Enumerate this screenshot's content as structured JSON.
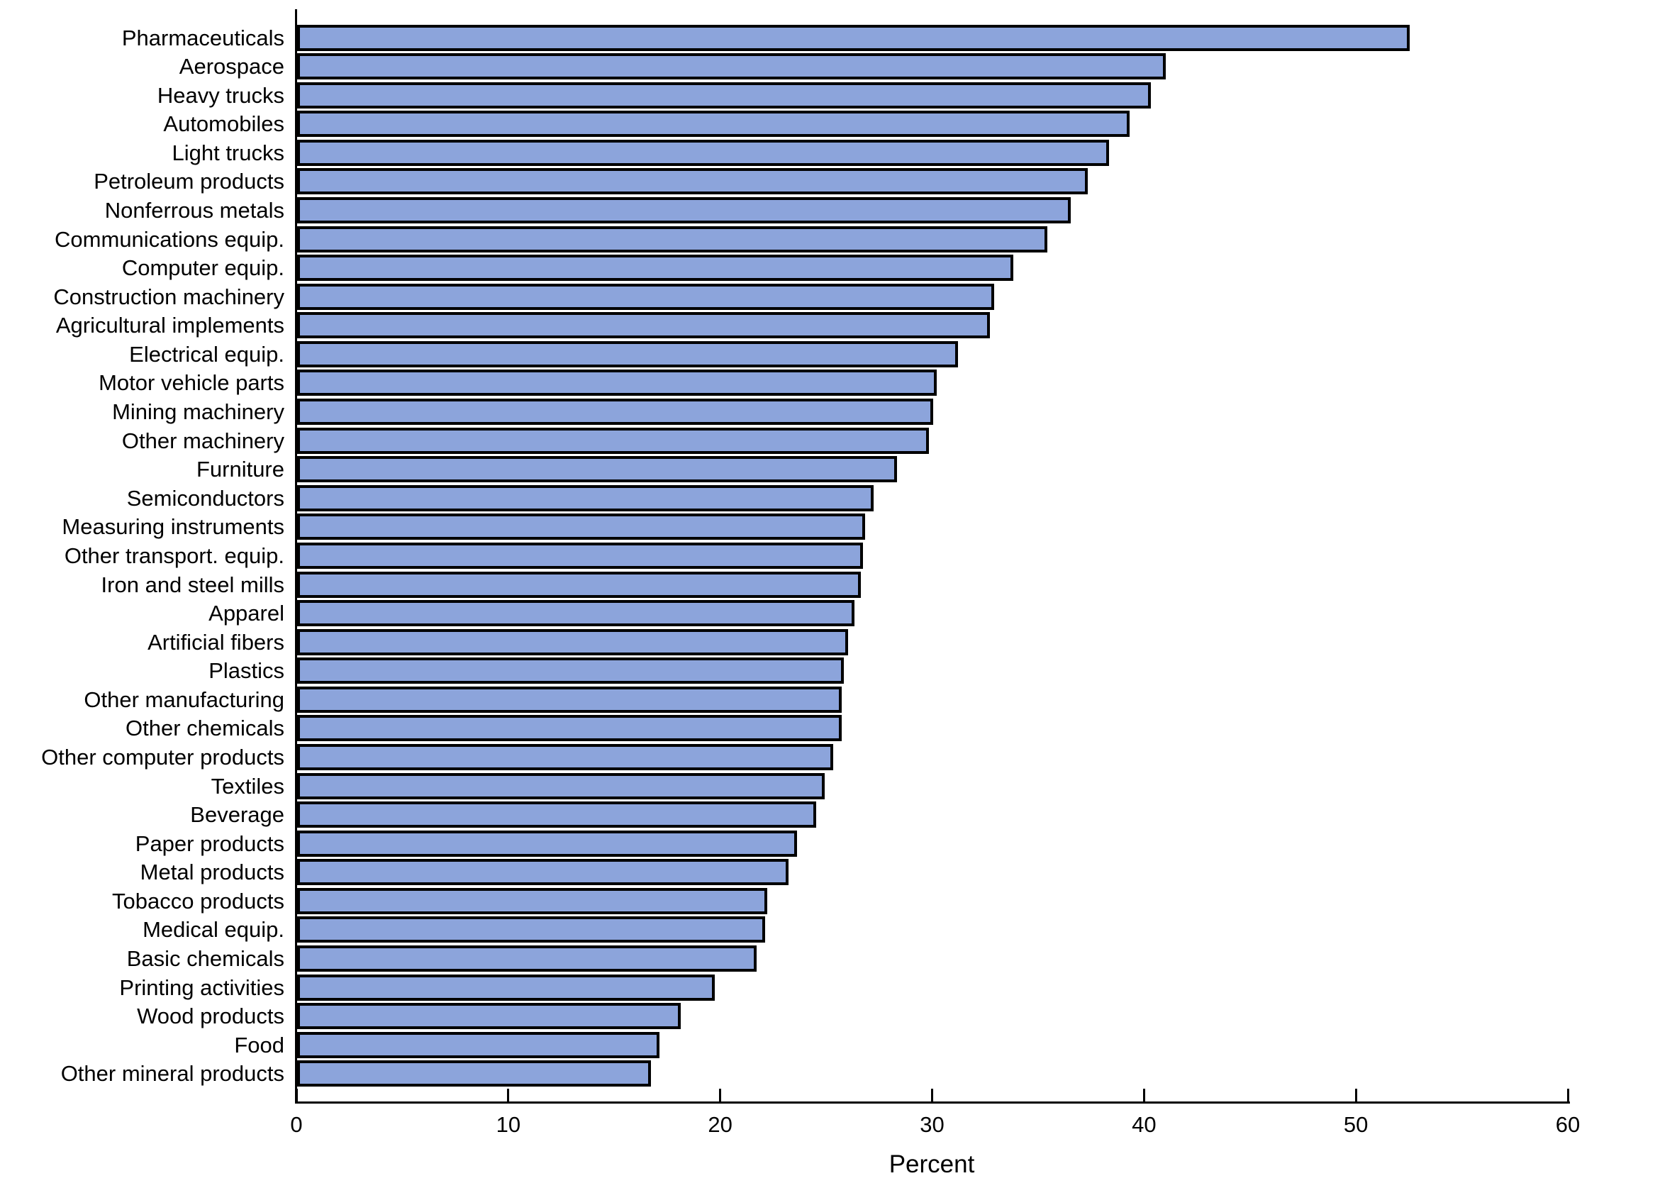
{
  "chart_data": {
    "type": "bar",
    "orientation": "horizontal",
    "title": "",
    "xlabel": "Percent",
    "ylabel": "",
    "xlim": [
      0,
      60
    ],
    "xticks": [
      0,
      10,
      20,
      30,
      40,
      50,
      60
    ],
    "grid": false,
    "legend": null,
    "bar_fill_color": "#8CA4DB",
    "bar_border_color": "#000000",
    "axis_color": "#000000",
    "text_color": "#000000",
    "background_color": "#FFFFFF",
    "categories": [
      "Pharmaceuticals",
      "Aerospace",
      "Heavy trucks",
      "Automobiles",
      "Light trucks",
      "Petroleum products",
      "Nonferrous metals",
      "Communications equip.",
      "Computer equip.",
      "Construction machinery",
      "Agricultural implements",
      "Electrical equip.",
      "Motor vehicle parts",
      "Mining machinery",
      "Other machinery",
      "Furniture",
      "Semiconductors",
      "Measuring instruments",
      "Other transport. equip.",
      "Iron and steel mills",
      "Apparel",
      "Artificial fibers",
      "Plastics",
      "Other manufacturing",
      "Other chemicals",
      "Other computer products",
      "Textiles",
      "Beverage",
      "Paper products",
      "Metal products",
      "Tobacco products",
      "Medical equip.",
      "Basic chemicals",
      "Printing activities",
      "Wood products",
      "Food",
      "Other mineral products"
    ],
    "values": [
      52.5,
      41.0,
      40.3,
      39.3,
      38.3,
      37.3,
      36.5,
      35.4,
      33.8,
      32.9,
      32.7,
      31.2,
      30.2,
      30.0,
      29.8,
      28.3,
      27.2,
      26.8,
      26.7,
      26.6,
      26.3,
      26.0,
      25.8,
      25.7,
      25.7,
      25.3,
      24.9,
      24.5,
      23.6,
      23.2,
      22.2,
      22.1,
      21.7,
      19.7,
      18.1,
      17.1,
      16.7
    ]
  }
}
